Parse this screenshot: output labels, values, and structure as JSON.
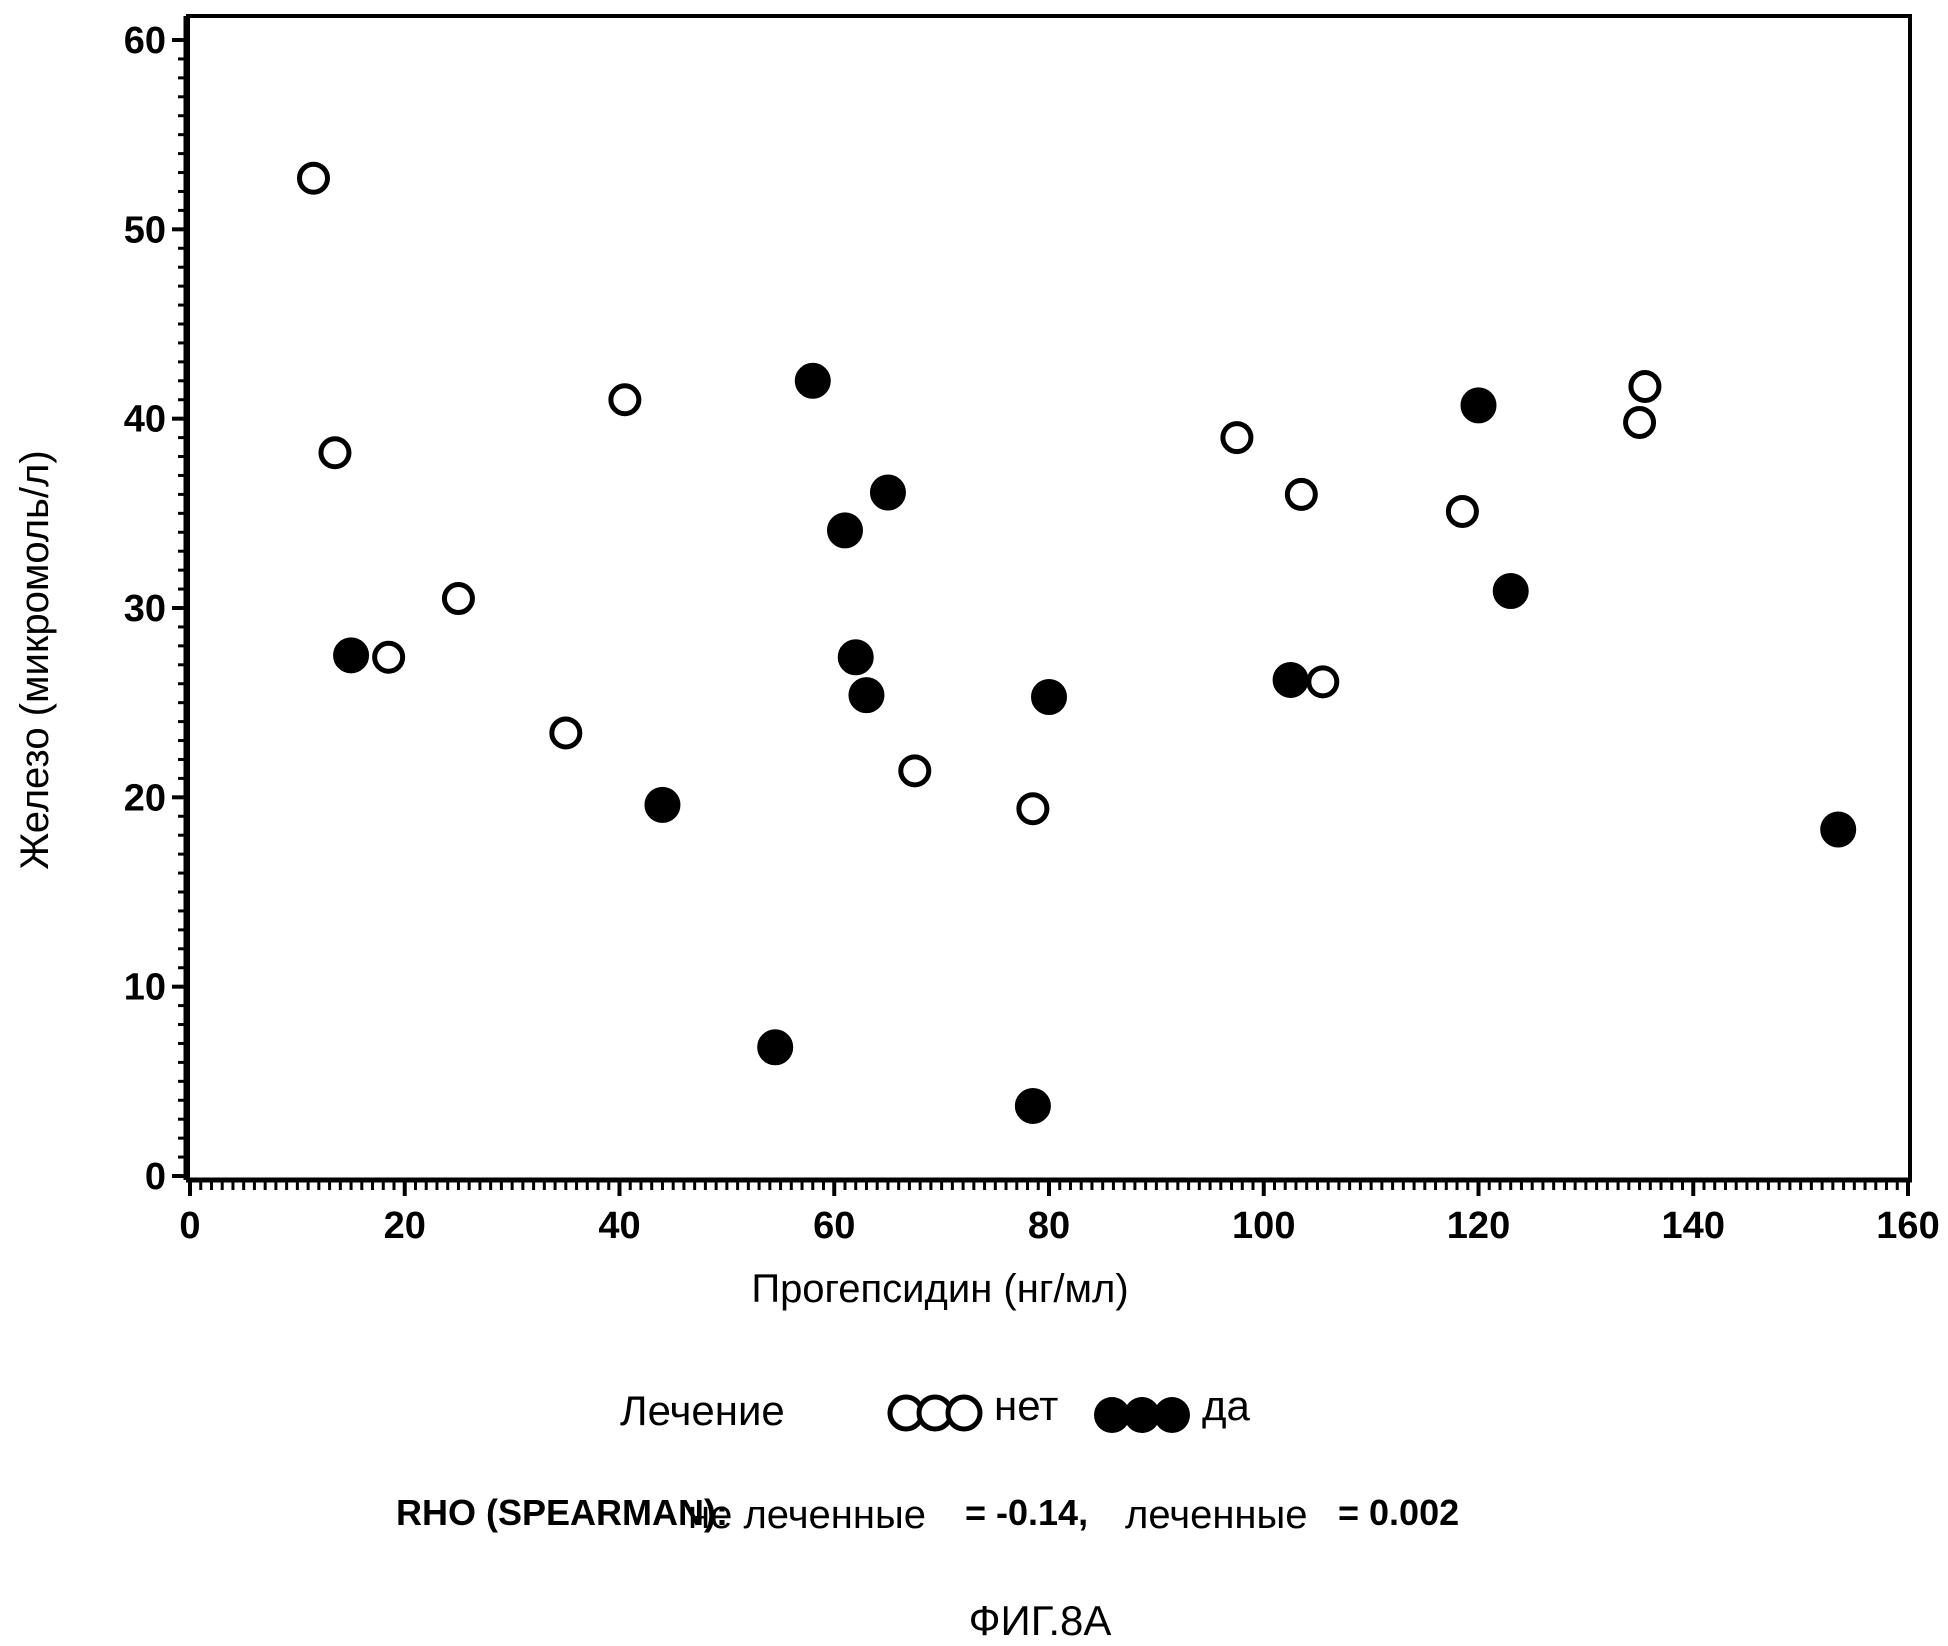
{
  "chart_data": {
    "type": "scatter",
    "xlabel": "Прогепсидин (нг/мл)",
    "ylabel": "Железо (микромоль/л)",
    "xlim": [
      0,
      160
    ],
    "ylim": [
      0,
      60
    ],
    "x_ticks": [
      0,
      20,
      40,
      60,
      80,
      100,
      120,
      140,
      160
    ],
    "y_ticks": [
      0,
      10,
      20,
      30,
      40,
      50,
      60
    ],
    "x_tick_labels": [
      "0",
      "20",
      "40",
      "60",
      "80",
      "100",
      "120",
      "140",
      "160"
    ],
    "y_tick_labels": [
      "0",
      "10",
      "20",
      "30",
      "40",
      "50",
      "60"
    ],
    "grid": false,
    "legend_title": "Лечение",
    "legend_placement": "bottom",
    "series": [
      {
        "name": "нет",
        "marker": "open-circle",
        "color": "#000000",
        "points": [
          {
            "x": 11.5,
            "y": 52.7
          },
          {
            "x": 13.5,
            "y": 38.2
          },
          {
            "x": 18.5,
            "y": 27.4
          },
          {
            "x": 25,
            "y": 30.5
          },
          {
            "x": 35,
            "y": 23.4
          },
          {
            "x": 40.5,
            "y": 41.0
          },
          {
            "x": 67.5,
            "y": 21.4
          },
          {
            "x": 78.5,
            "y": 19.4
          },
          {
            "x": 97.5,
            "y": 39.0
          },
          {
            "x": 103.5,
            "y": 36.0
          },
          {
            "x": 105.5,
            "y": 26.1
          },
          {
            "x": 118.5,
            "y": 35.1
          },
          {
            "x": 135,
            "y": 39.8
          },
          {
            "x": 135.5,
            "y": 41.7
          }
        ]
      },
      {
        "name": "да",
        "marker": "filled-circle",
        "color": "#000000",
        "points": [
          {
            "x": 15,
            "y": 27.5
          },
          {
            "x": 44,
            "y": 19.6
          },
          {
            "x": 54.5,
            "y": 6.8
          },
          {
            "x": 58,
            "y": 42.0
          },
          {
            "x": 61,
            "y": 34.1
          },
          {
            "x": 62,
            "y": 27.4
          },
          {
            "x": 63,
            "y": 25.4
          },
          {
            "x": 65,
            "y": 36.1
          },
          {
            "x": 78.5,
            "y": 3.7
          },
          {
            "x": 80,
            "y": 25.3
          },
          {
            "x": 102.5,
            "y": 26.2
          },
          {
            "x": 120,
            "y": 40.7
          },
          {
            "x": 123,
            "y": 30.9
          },
          {
            "x": 153.5,
            "y": 18.3
          }
        ]
      }
    ],
    "annotation_label": "RHO (SPEARMAN):",
    "annotation_untreated_label": "не леченные",
    "annotation_untreated_value": "= -0.14,",
    "annotation_treated_label": "леченные",
    "annotation_treated_value": "= 0.002",
    "caption": "ФИГ.8А"
  }
}
